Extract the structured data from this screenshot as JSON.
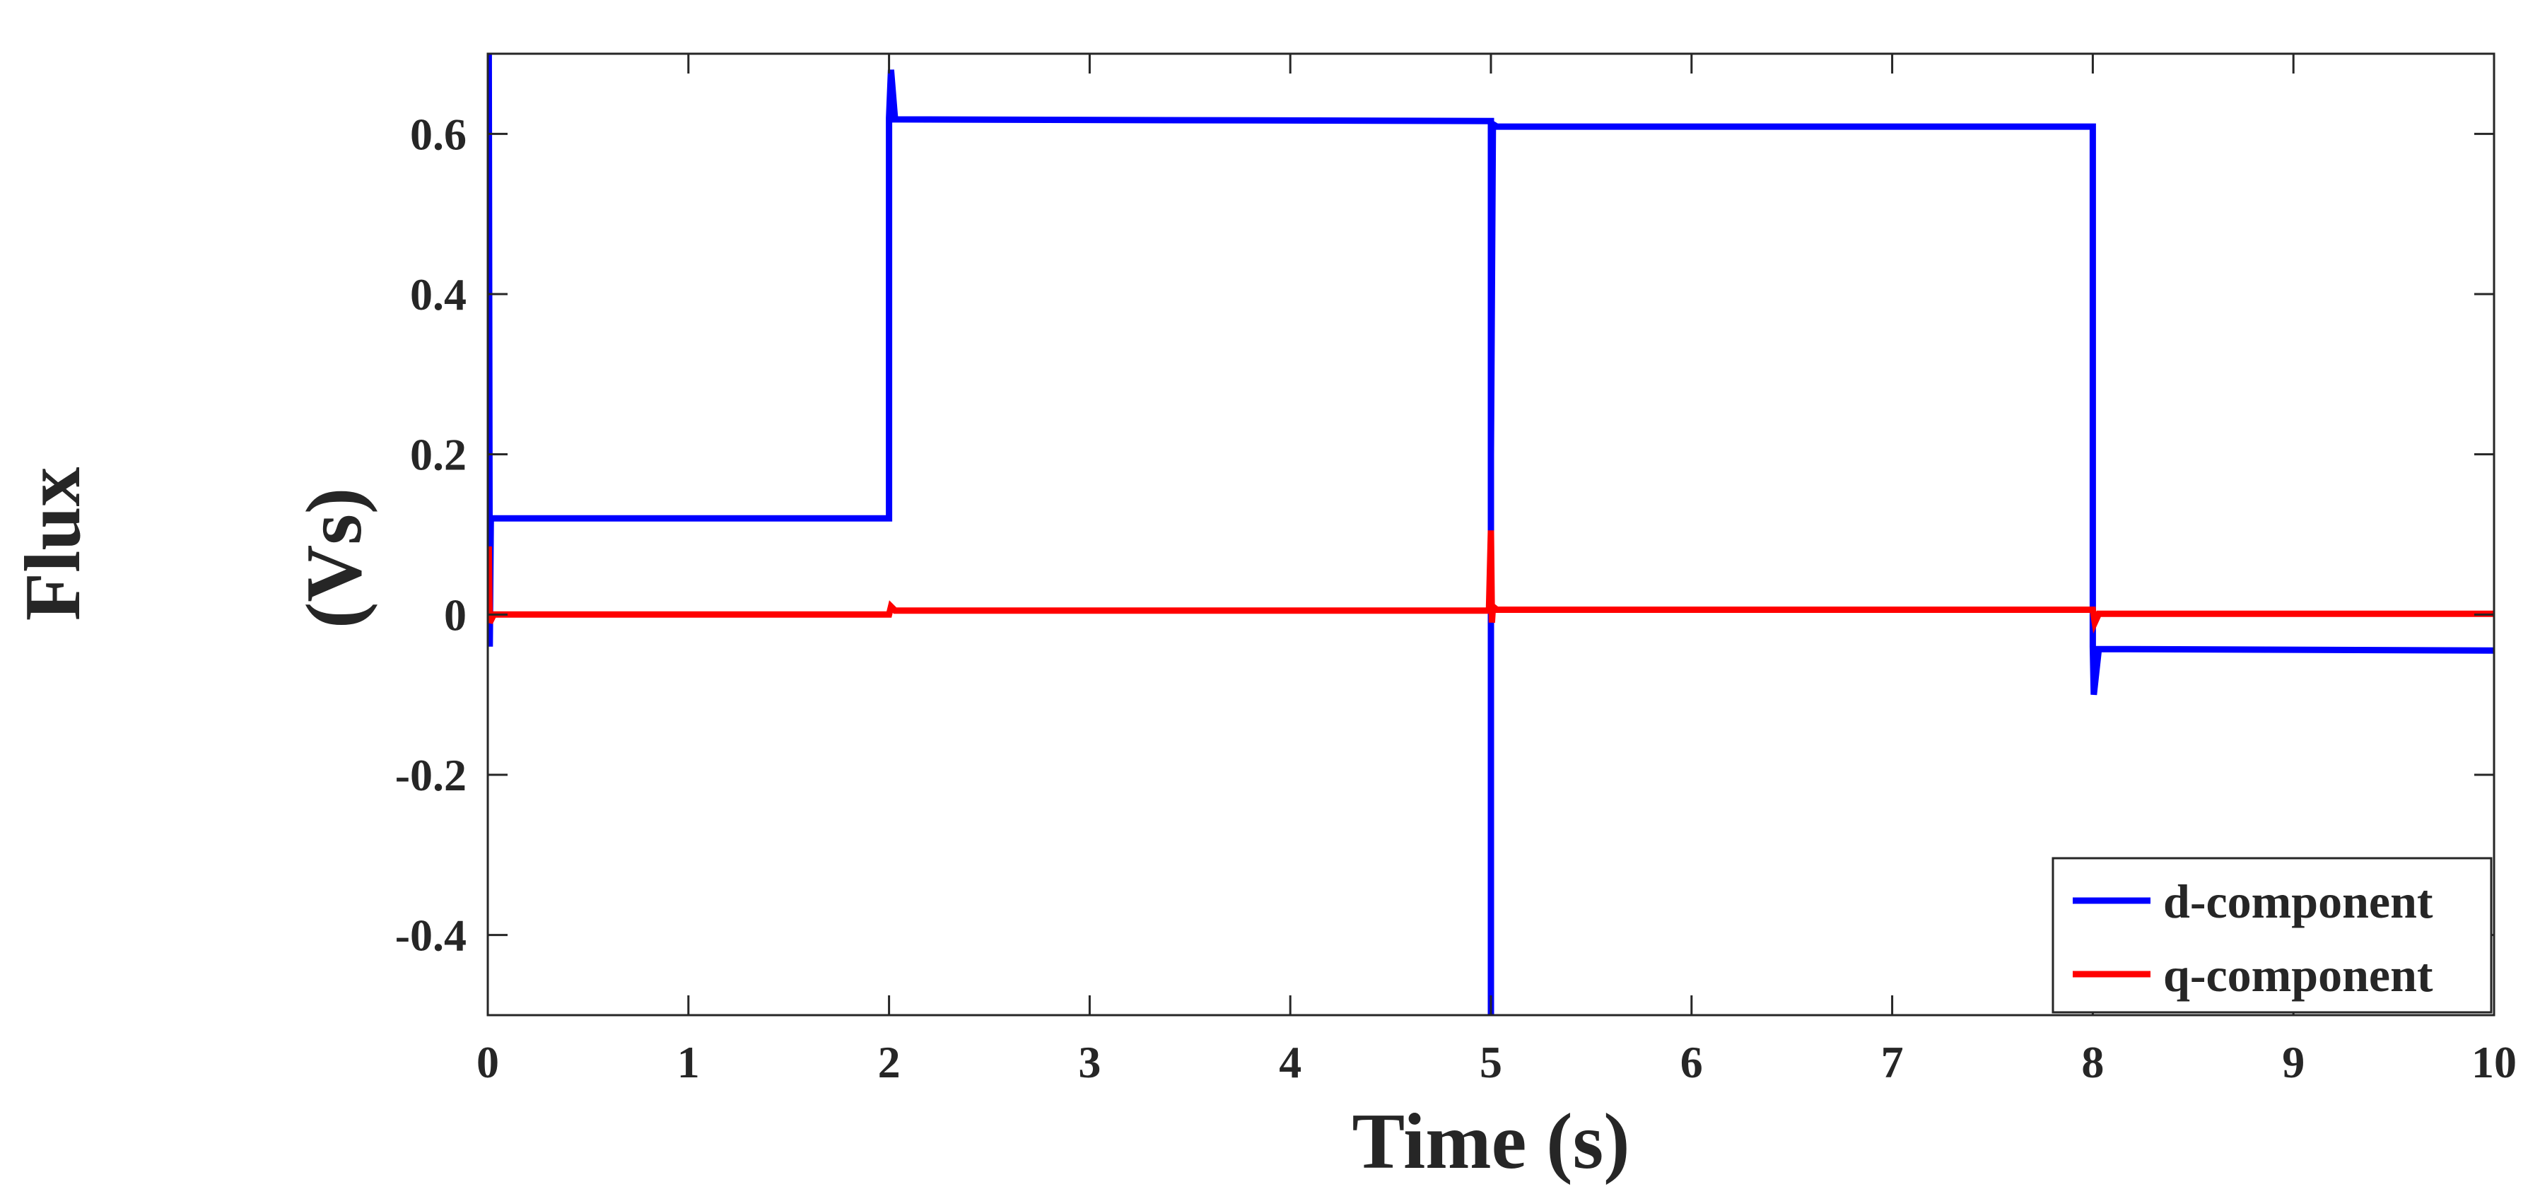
{
  "chart_data": {
    "type": "line",
    "title": "",
    "xlabel": "Time (s)",
    "ylabel_outer": "Flux",
    "ylabel_unit": "(Vs)",
    "xlim": [
      0,
      10
    ],
    "ylim": [
      -0.5,
      0.7
    ],
    "x_ticks": [
      0,
      1,
      2,
      3,
      4,
      5,
      6,
      7,
      8,
      9,
      10
    ],
    "x_tick_labels": [
      "0",
      "1",
      "2",
      "3",
      "4",
      "5",
      "6",
      "7",
      "8",
      "9",
      "10"
    ],
    "y_ticks": [
      -0.4,
      -0.2,
      0,
      0.2,
      0.4,
      0.6
    ],
    "y_tick_labels": [
      "-0.4",
      "-0.2",
      "0",
      "0.2",
      "0.4",
      "0.6"
    ],
    "grid": false,
    "legend_position": "bottom-right",
    "series": [
      {
        "name": "d-component",
        "color": "#0000ff",
        "x": [
          0,
          0.005,
          0.01,
          0.015,
          0.02,
          0.03,
          2.0,
          2.0,
          2.01,
          2.03,
          5.0,
          5.0,
          5.0,
          5.01,
          5.03,
          8.0,
          8.0,
          8.005,
          8.03,
          10.0
        ],
        "y": [
          0.0,
          0.7,
          -0.04,
          0.12,
          0.12,
          0.12,
          0.12,
          0.62,
          0.68,
          0.618,
          0.616,
          -0.5,
          0.2,
          0.612,
          0.609,
          0.609,
          -0.04,
          -0.1,
          -0.043,
          -0.045
        ]
      },
      {
        "name": "q-component",
        "color": "#ff0000",
        "x": [
          0,
          0.005,
          0.01,
          0.03,
          2.0,
          2.01,
          2.03,
          4.99,
          5.0,
          5.005,
          5.01,
          5.03,
          8.0,
          8.01,
          8.03,
          10.0
        ],
        "y": [
          0.0,
          0.085,
          -0.01,
          0.0,
          0.0,
          0.01,
          0.005,
          0.005,
          0.105,
          -0.01,
          0.01,
          0.006,
          0.006,
          -0.01,
          0.001,
          0.001
        ]
      }
    ]
  }
}
